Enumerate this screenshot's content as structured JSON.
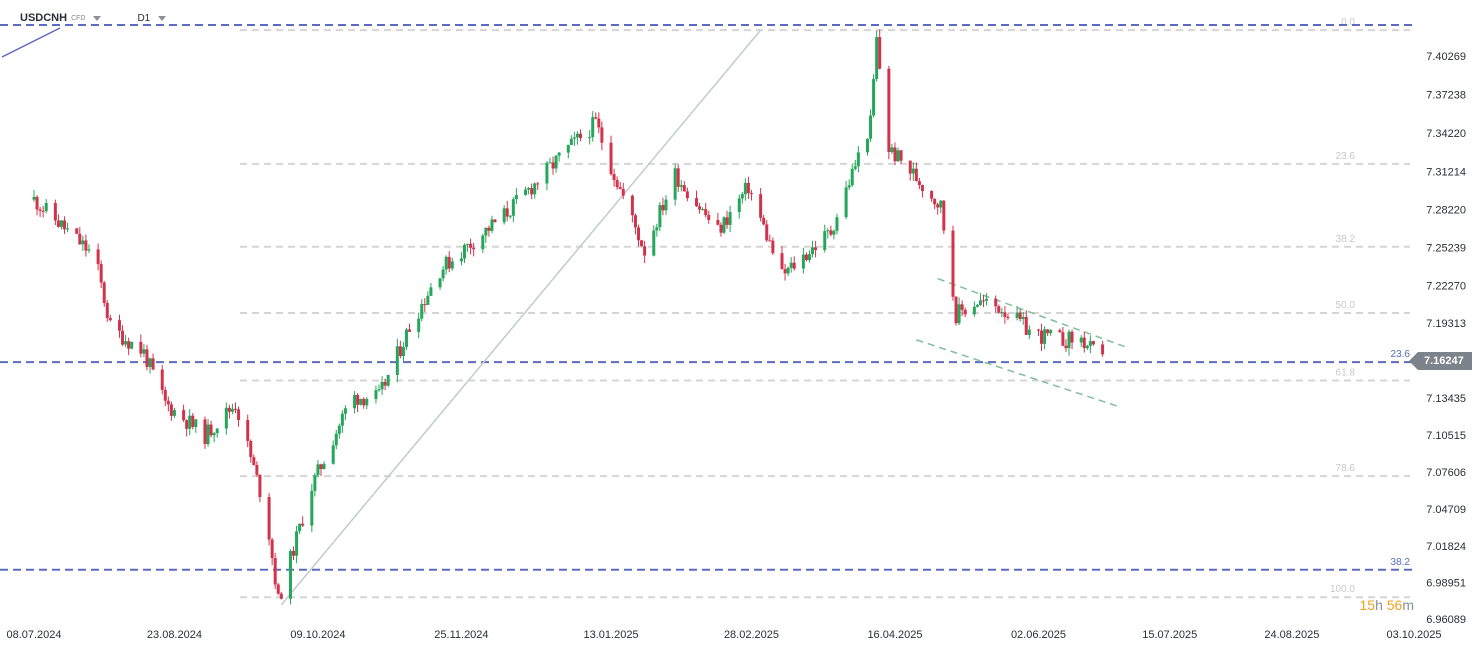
{
  "header": {
    "symbol": "USDCNH",
    "symbol_type": "CFD",
    "timeframe": "D1"
  },
  "countdown": {
    "hours": "15",
    "hours_unit": "h",
    "minutes": "56",
    "minutes_unit": "m"
  },
  "current_price": "7.16247",
  "colors": {
    "up": "#26a65b",
    "down": "#d2334c",
    "blue_line": "#5b6bbf",
    "fib_line": "#d5d5d5",
    "channel": "#7fbf9a",
    "trend": "#c4c9d1"
  },
  "chart_data": {
    "type": "candlestick",
    "symbol": "USDCNH",
    "timeframe": "D1",
    "y_axis_labels": [
      "7.40269",
      "7.37238",
      "7.34220",
      "7.31214",
      "7.28220",
      "7.25239",
      "7.22270",
      "7.19313",
      "7.16247",
      "7.13435",
      "7.10515",
      "7.07606",
      "7.04709",
      "7.01824",
      "6.98951",
      "6.96089"
    ],
    "x_axis_labels": [
      "08.07.2024",
      "23.08.2024",
      "09.10.2024",
      "25.11.2024",
      "13.01.2025",
      "28.02.2025",
      "16.04.2025",
      "02.06.2025",
      "15.07.2025",
      "24.08.2025",
      "03.10.2025"
    ],
    "fibonacci_levels": [
      {
        "label": "0.0",
        "price": 7.423
      },
      {
        "label": "23.6",
        "price": 7.318
      },
      {
        "label": "38.2",
        "price": 7.253
      },
      {
        "label": "50.0",
        "price": 7.201
      },
      {
        "label": "61.8",
        "price": 7.148
      },
      {
        "label": "78.6",
        "price": 7.073
      },
      {
        "label": "100.0",
        "price": 6.978
      }
    ],
    "horizontal_levels": [
      {
        "label": "",
        "price": 7.427
      },
      {
        "label": "23.6",
        "price": 7.1625
      },
      {
        "label": "38.2",
        "price": 6.9995
      }
    ],
    "trend_line": {
      "start": {
        "date": "2024-09-27",
        "price": 6.972
      },
      "end": {
        "date": "2025-03-03",
        "price": 7.423
      }
    },
    "channel": {
      "upper": {
        "start": {
          "date": "2025-04-30",
          "price": 7.228
        },
        "end": {
          "date": "2025-07-01",
          "price": 7.174
        }
      },
      "lower": {
        "start": {
          "date": "2025-04-23",
          "price": 7.18
        },
        "end": {
          "date": "2025-06-29",
          "price": 7.127
        }
      }
    },
    "ohlc_anchors": [
      {
        "date": "2024-07-08",
        "close": 7.29
      },
      {
        "date": "2024-07-28",
        "close": 7.245
      },
      {
        "date": "2024-08-02",
        "close": 7.19
      },
      {
        "date": "2024-08-13",
        "close": 7.17
      },
      {
        "date": "2024-08-20",
        "close": 7.13
      },
      {
        "date": "2024-09-02",
        "close": 7.105
      },
      {
        "date": "2024-09-12",
        "close": 7.13
      },
      {
        "date": "2024-09-22",
        "close": 7.045
      },
      {
        "date": "2024-09-26",
        "close": 6.975
      },
      {
        "date": "2024-10-07",
        "close": 7.065
      },
      {
        "date": "2024-10-20",
        "close": 7.135
      },
      {
        "date": "2024-10-29",
        "close": 7.135
      },
      {
        "date": "2024-11-08",
        "close": 7.19
      },
      {
        "date": "2024-11-18",
        "close": 7.235
      },
      {
        "date": "2024-12-10",
        "close": 7.28
      },
      {
        "date": "2024-12-30",
        "close": 7.33
      },
      {
        "date": "2025-01-08",
        "close": 7.35
      },
      {
        "date": "2025-01-14",
        "close": 7.31
      },
      {
        "date": "2025-01-24",
        "close": 7.25
      },
      {
        "date": "2025-02-03",
        "close": 7.31
      },
      {
        "date": "2025-02-17",
        "close": 7.265
      },
      {
        "date": "2025-02-27",
        "close": 7.3
      },
      {
        "date": "2025-03-10",
        "close": 7.23
      },
      {
        "date": "2025-03-26",
        "close": 7.265
      },
      {
        "date": "2025-04-08",
        "close": 7.35
      },
      {
        "date": "2025-04-10",
        "close": 7.415
      },
      {
        "date": "2025-04-14",
        "close": 7.33
      },
      {
        "date": "2025-04-22",
        "close": 7.31
      },
      {
        "date": "2025-05-01",
        "close": 7.285
      },
      {
        "date": "2025-05-06",
        "close": 7.2
      },
      {
        "date": "2025-05-13",
        "close": 7.21
      },
      {
        "date": "2025-05-21",
        "close": 7.205
      },
      {
        "date": "2025-05-31",
        "close": 7.185
      },
      {
        "date": "2025-06-09",
        "close": 7.18
      },
      {
        "date": "2025-06-16",
        "close": 7.18
      },
      {
        "date": "2025-06-23",
        "close": 7.163
      }
    ]
  }
}
